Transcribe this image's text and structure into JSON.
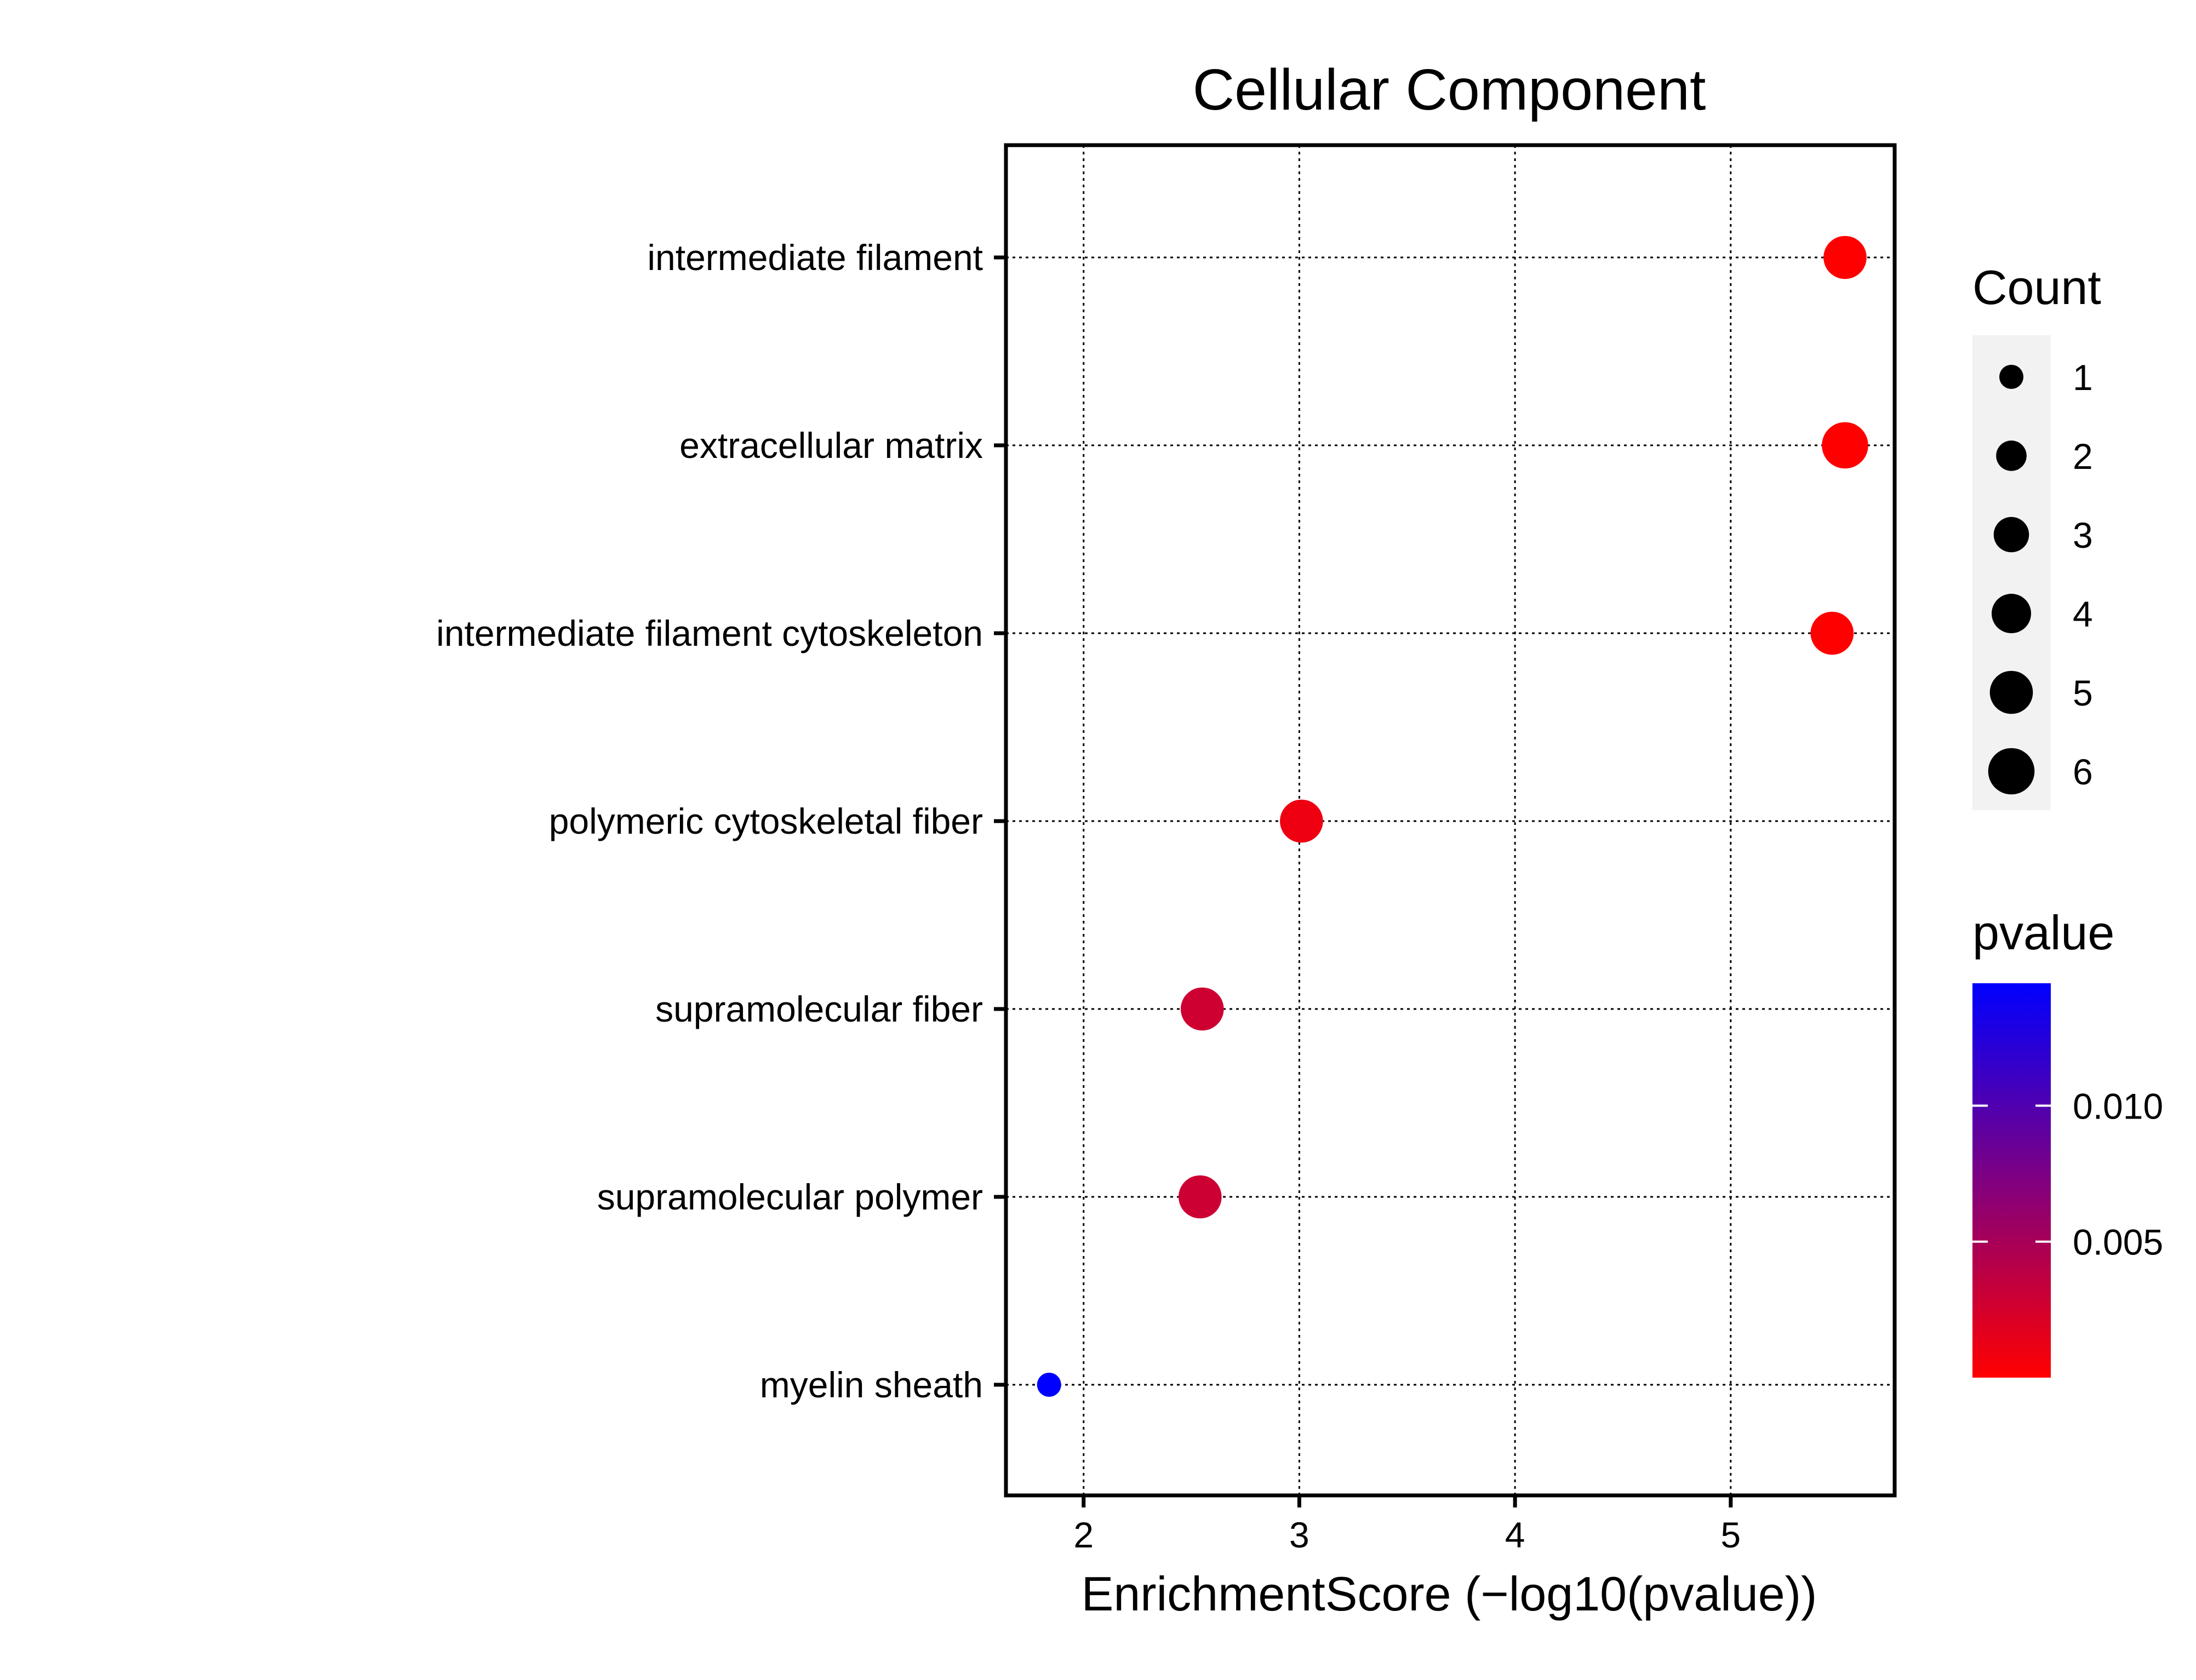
{
  "chart_data": {
    "type": "scatter",
    "title": "Cellular Component",
    "xlabel": "EnrichmentScore (−log10(pvalue))",
    "ylabel": "",
    "xlim": [
      1.64,
      5.76
    ],
    "x_ticks": [
      2,
      3,
      4,
      5
    ],
    "grid": true,
    "grid_style": "dotted",
    "categories": [
      "intermediate filament",
      "extracellular matrix",
      "intermediate filament cytoskeleton",
      "polymeric cytoskeletal fiber",
      "supramolecular fiber",
      "supramolecular polymer",
      "myelin sheath"
    ],
    "points": [
      {
        "term": "intermediate filament",
        "enrichment_score": 5.53,
        "count": 5,
        "pvalue": 3e-06
      },
      {
        "term": "extracellular matrix",
        "enrichment_score": 5.53,
        "count": 6,
        "pvalue": 3e-06
      },
      {
        "term": "intermediate filament cytoskeleton",
        "enrichment_score": 5.47,
        "count": 5,
        "pvalue": 3.4e-06
      },
      {
        "term": "polymeric cytoskeletal fiber",
        "enrichment_score": 3.01,
        "count": 5,
        "pvalue": 0.00098
      },
      {
        "term": "supramolecular fiber",
        "enrichment_score": 2.55,
        "count": 5,
        "pvalue": 0.0028
      },
      {
        "term": "supramolecular polymer",
        "enrichment_score": 2.54,
        "count": 5,
        "pvalue": 0.0029
      },
      {
        "term": "myelin sheath",
        "enrichment_score": 1.84,
        "count": 1,
        "pvalue": 0.0145
      }
    ],
    "legend_size": {
      "title": "Count",
      "values": [
        1,
        2,
        3,
        4,
        5,
        6
      ],
      "labels": [
        "1",
        "2",
        "3",
        "4",
        "5",
        "6"
      ]
    },
    "legend_color": {
      "title": "pvalue",
      "low_color": "#ff0000",
      "high_color": "#0000ff",
      "range": [
        0.0,
        0.0145
      ],
      "ticks": [
        0.005,
        0.01
      ],
      "tick_labels": [
        "0.005",
        "0.010"
      ]
    },
    "legend_position": "right"
  }
}
